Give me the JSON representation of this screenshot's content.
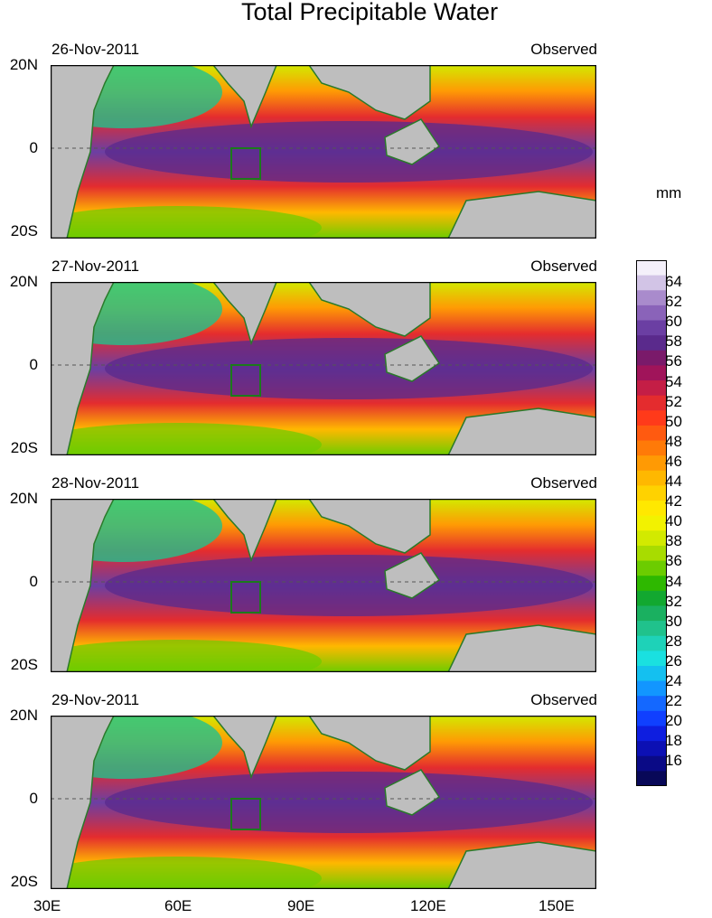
{
  "title": "Total Precipitable Water",
  "units": "mm",
  "colors": {
    "land": "#bebebe",
    "coast": "#2a7a2a",
    "box": "#1c7a1c",
    "palette": [
      "#f4f0fa",
      "#d2c4e6",
      "#a98bcc",
      "#8a63b9",
      "#6b3fa3",
      "#5a2a8c",
      "#7a1a6a",
      "#a0145a",
      "#c41e46",
      "#e42c2e",
      "#ff3a1a",
      "#ff5a10",
      "#ff7a08",
      "#ff9a04",
      "#ffb800",
      "#ffd200",
      "#ffe800",
      "#f2f200",
      "#d2ea00",
      "#a8dc00",
      "#6ccc00",
      "#2eb800",
      "#12a830",
      "#1ab060",
      "#20c28c",
      "#1ed2b8",
      "#1ae0e0",
      "#14c0f0",
      "#1296ff",
      "#1468ff",
      "#1040ff",
      "#0e1ee0",
      "#0c10b4",
      "#0a0a86",
      "#080858"
    ]
  },
  "panels": [
    {
      "date": "26-Nov-2011",
      "label": "Observed"
    },
    {
      "date": "27-Nov-2011",
      "label": "Observed"
    },
    {
      "date": "28-Nov-2011",
      "label": "Observed"
    },
    {
      "date": "29-Nov-2011",
      "label": "Observed"
    }
  ],
  "lat_labels": [
    "20N",
    "0",
    "20S"
  ],
  "lon_labels": [
    "30E",
    "60E",
    "90E",
    "120E",
    "150E"
  ],
  "colorbar_labels": [
    "64",
    "62",
    "60",
    "58",
    "56",
    "54",
    "52",
    "50",
    "48",
    "46",
    "44",
    "42",
    "40",
    "38",
    "36",
    "34",
    "32",
    "30",
    "28",
    "26",
    "24",
    "22",
    "20",
    "18",
    "16"
  ]
}
